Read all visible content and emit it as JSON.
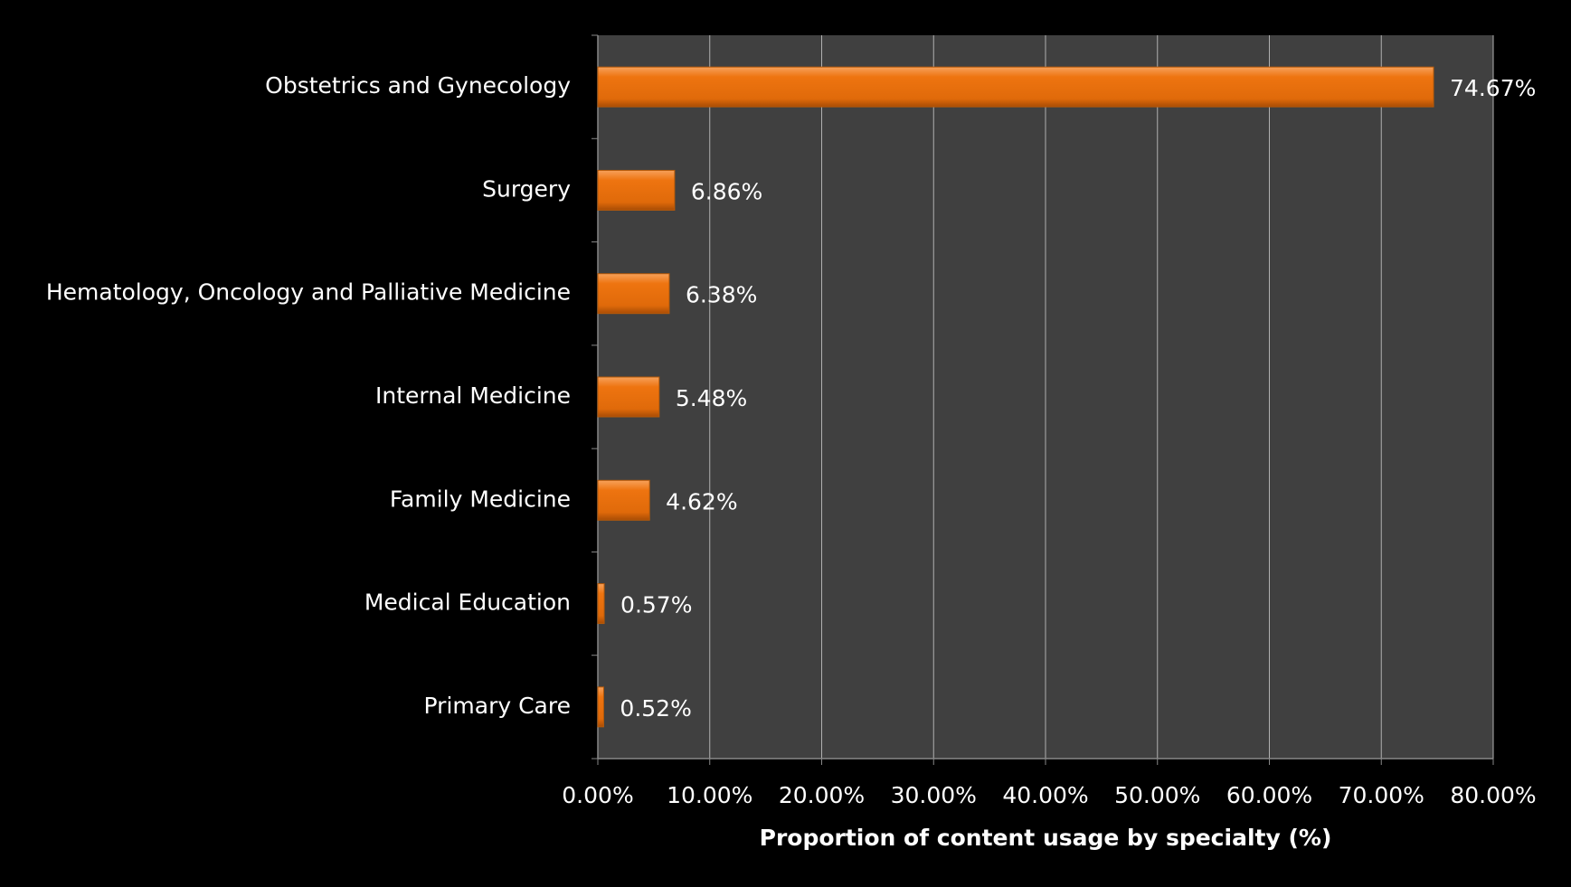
{
  "chart_data": {
    "type": "bar",
    "orientation": "horizontal",
    "x_label": "Proportion of content usage by specialty (%)",
    "categories": [
      "Obstetrics and Gynecology",
      "Surgery",
      "Hematology, Oncology and Palliative Medicine",
      "Internal Medicine",
      "Family Medicine",
      "Medical Education",
      "Primary Care"
    ],
    "values": [
      74.67,
      6.86,
      6.38,
      5.48,
      4.62,
      0.57,
      0.52
    ],
    "value_labels": [
      "74.67%",
      "6.86%",
      "6.38%",
      "5.48%",
      "4.62%",
      "0.57%",
      "0.52%"
    ],
    "color": "#ee7410",
    "xlim": [
      0,
      80
    ],
    "xticks": [
      {
        "value": 0,
        "label": "0.00%"
      },
      {
        "value": 10,
        "label": "10.00%"
      },
      {
        "value": 20,
        "label": "20.00%"
      },
      {
        "value": 30,
        "label": "30.00%"
      },
      {
        "value": 40,
        "label": "40.00%"
      },
      {
        "value": 50,
        "label": "50.00%"
      },
      {
        "value": 60,
        "label": "60.00%"
      },
      {
        "value": 70,
        "label": "70.00%"
      },
      {
        "value": 80,
        "label": "80.00%"
      }
    ],
    "grid": true
  }
}
